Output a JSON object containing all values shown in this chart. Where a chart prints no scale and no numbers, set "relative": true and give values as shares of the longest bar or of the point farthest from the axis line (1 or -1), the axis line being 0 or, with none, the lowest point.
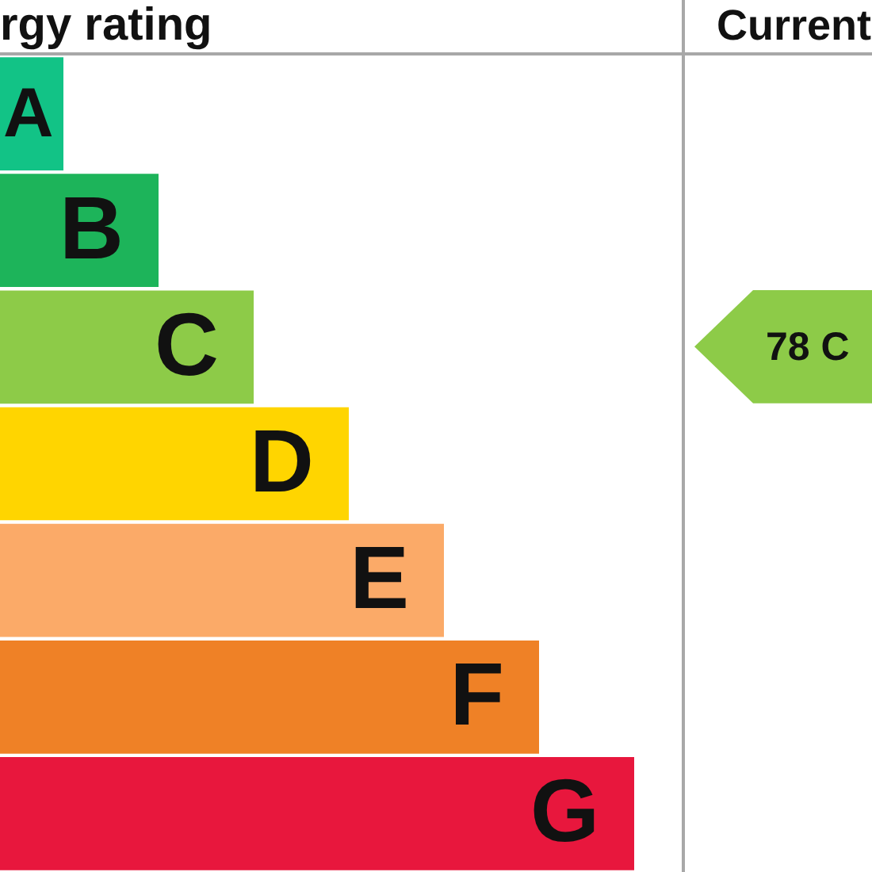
{
  "chart_data": {
    "type": "bar",
    "orientation": "horizontal",
    "relative": true,
    "title": "rgy rating",
    "categories": [
      "A",
      "B",
      "C",
      "D",
      "E",
      "F",
      "G"
    ],
    "values": [
      0.1,
      0.25,
      0.4,
      0.55,
      0.7,
      0.85,
      1
    ],
    "colors": [
      "#12c386",
      "#1db45a",
      "#8dcb48",
      "#ffd500",
      "#fbaa68",
      "#ef8126",
      "#e8173d"
    ],
    "annotations": [
      "Current",
      "78 C"
    ]
  }
}
